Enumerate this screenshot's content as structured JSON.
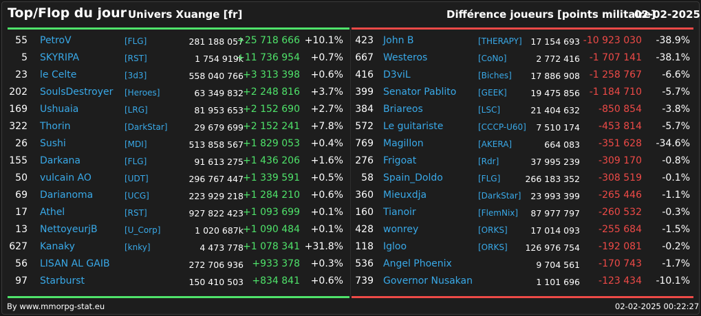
{
  "header": {
    "title": "Top/Flop du jour",
    "universe": "Univers Xuange [fr]",
    "difference": "Différence joueurs [points militaire]",
    "date": "02-02-2025"
  },
  "colors": {
    "gain": "#4fe36a",
    "loss": "#ee4a47",
    "link": "#39a9e8"
  },
  "top": [
    {
      "rank": "55",
      "name": "PetroV",
      "alliance": "[FLG]",
      "points": "281 188 057",
      "delta": "+25 718 666",
      "pct": "+10.1%"
    },
    {
      "rank": "5",
      "name": "SKYRIPA",
      "alliance": "[RST]",
      "points": "1 754 919k",
      "delta": "+11 736 954",
      "pct": "+0.7%"
    },
    {
      "rank": "23",
      "name": "le Celte",
      "alliance": "[3d3]",
      "points": "558 040 766",
      "delta": "+3 313 398",
      "pct": "+0.6%"
    },
    {
      "rank": "202",
      "name": "SoulsDestroyer",
      "alliance": "[Heroes]",
      "points": "63 349 832",
      "delta": "+2 248 816",
      "pct": "+3.7%"
    },
    {
      "rank": "169",
      "name": "Ushuaia",
      "alliance": "[LRG]",
      "points": "81 953 653",
      "delta": "+2 152 690",
      "pct": "+2.7%"
    },
    {
      "rank": "322",
      "name": "Thorin",
      "alliance": "[DarkStar]",
      "points": "29 679 699",
      "delta": "+2 152 241",
      "pct": "+7.8%"
    },
    {
      "rank": "26",
      "name": "Sushi",
      "alliance": "[MDI]",
      "points": "513 858 567",
      "delta": "+1 829 053",
      "pct": "+0.4%"
    },
    {
      "rank": "155",
      "name": "Darkana",
      "alliance": "[FLG]",
      "points": "91 613 275",
      "delta": "+1 436 206",
      "pct": "+1.6%"
    },
    {
      "rank": "50",
      "name": "vulcain AO",
      "alliance": "[UDT]",
      "points": "296 767 447",
      "delta": "+1 339 591",
      "pct": "+0.5%"
    },
    {
      "rank": "69",
      "name": "Darianoma",
      "alliance": "[UCG]",
      "points": "223 929 218",
      "delta": "+1 284 210",
      "pct": "+0.6%"
    },
    {
      "rank": "17",
      "name": "Athel",
      "alliance": "[RST]",
      "points": "927 822 423",
      "delta": "+1 093 699",
      "pct": "+0.1%"
    },
    {
      "rank": "13",
      "name": "NettoyeurjB",
      "alliance": "[U_Corp]",
      "points": "1 020 687k",
      "delta": "+1 090 484",
      "pct": "+0.1%"
    },
    {
      "rank": "627",
      "name": "Kanaky",
      "alliance": "[knky]",
      "points": "4 473 778",
      "delta": "+1 078 341",
      "pct": "+31.8%"
    },
    {
      "rank": "56",
      "name": "LISAN AL GAIB",
      "alliance": "",
      "points": "272 706 936",
      "delta": "+933 378",
      "pct": "+0.3%"
    },
    {
      "rank": "97",
      "name": "Starburst",
      "alliance": "",
      "points": "150 410 503",
      "delta": "+834 841",
      "pct": "+0.6%"
    }
  ],
  "flop": [
    {
      "rank": "423",
      "name": "John B",
      "alliance": "[THERAPY]",
      "points": "17 154 693",
      "delta": "-10 923 030",
      "pct": "-38.9%"
    },
    {
      "rank": "667",
      "name": "Westeros",
      "alliance": "[CoNo]",
      "points": "2 772 416",
      "delta": "-1 707 141",
      "pct": "-38.1%"
    },
    {
      "rank": "416",
      "name": "D3viL",
      "alliance": "[Biches]",
      "points": "17 886 908",
      "delta": "-1 258 767",
      "pct": "-6.6%"
    },
    {
      "rank": "399",
      "name": "Senator Pablito",
      "alliance": "[GEEK]",
      "points": "19 475 856",
      "delta": "-1 184 710",
      "pct": "-5.7%"
    },
    {
      "rank": "384",
      "name": "Briareos",
      "alliance": "[LSC]",
      "points": "21 404 632",
      "delta": "-850 854",
      "pct": "-3.8%"
    },
    {
      "rank": "572",
      "name": "Le guitariste",
      "alliance": "[CCCP-U60]",
      "points": "7 510 174",
      "delta": "-453 814",
      "pct": "-5.7%"
    },
    {
      "rank": "769",
      "name": "Magillon",
      "alliance": "[AKERA]",
      "points": "664 083",
      "delta": "-351 628",
      "pct": "-34.6%"
    },
    {
      "rank": "276",
      "name": "Frigoat",
      "alliance": "[Rdr]",
      "points": "37 995 239",
      "delta": "-309 170",
      "pct": "-0.8%"
    },
    {
      "rank": "58",
      "name": "Spain_Doldo",
      "alliance": "[FLG]",
      "points": "266 183 352",
      "delta": "-308 519",
      "pct": "-0.1%"
    },
    {
      "rank": "360",
      "name": "Mieuxdja",
      "alliance": "[DarkStar]",
      "points": "23 993 399",
      "delta": "-265 446",
      "pct": "-1.1%"
    },
    {
      "rank": "160",
      "name": "Tianoir",
      "alliance": "[FlemNix]",
      "points": "87 977 797",
      "delta": "-260 532",
      "pct": "-0.3%"
    },
    {
      "rank": "428",
      "name": "wonrey",
      "alliance": "[ORKS]",
      "points": "17 014 093",
      "delta": "-255 684",
      "pct": "-1.5%"
    },
    {
      "rank": "118",
      "name": "Igloo",
      "alliance": "[ORKS]",
      "points": "126 976 754",
      "delta": "-192 081",
      "pct": "-0.2%"
    },
    {
      "rank": "536",
      "name": "Angel Phoenix",
      "alliance": "",
      "points": "9 704 561",
      "delta": "-170 743",
      "pct": "-1.7%"
    },
    {
      "rank": "739",
      "name": "Governor Nusakan",
      "alliance": "",
      "points": "1 101 696",
      "delta": "-123 434",
      "pct": "-10.1%"
    }
  ],
  "footer": {
    "credit": "By www.mmorpg-stat.eu",
    "timestamp": "02-02-2025 00:22:27"
  }
}
